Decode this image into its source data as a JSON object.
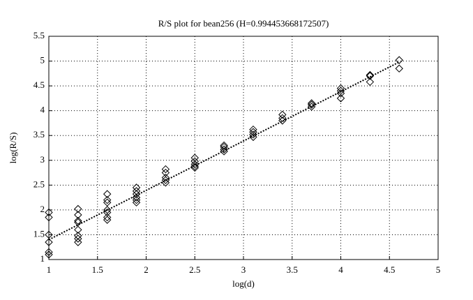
{
  "chart_data": {
    "type": "scatter",
    "title": "R/S plot for bean256 (H=0.994453668172507)",
    "x_label": "log(d)",
    "y_label": "log(R/S)",
    "xlim": [
      1,
      5
    ],
    "ylim": [
      1,
      5.5
    ],
    "xticks": [
      1,
      1.5,
      2,
      2.5,
      3,
      3.5,
      4,
      4.5,
      5
    ],
    "yticks": [
      1,
      1.5,
      2,
      2.5,
      3,
      3.5,
      4,
      4.5,
      5,
      5.5
    ],
    "grid": true,
    "series": [
      {
        "type": "scatter",
        "color": "#000000",
        "x": [
          1,
          1,
          1,
          1,
          1,
          1,
          1.3,
          1.3,
          1.3,
          1.3,
          1.3,
          1.3,
          1.3,
          1.3,
          1.6,
          1.6,
          1.6,
          1.6,
          1.6,
          1.6,
          1.6,
          1.9,
          1.9,
          1.9,
          1.9,
          1.9,
          1.9,
          2.2,
          2.2,
          2.2,
          2.2,
          2.2,
          2.5,
          2.5,
          2.5,
          2.5,
          2.5,
          2.8,
          2.8,
          2.8,
          2.8,
          3.1,
          3.1,
          3.1,
          3.1,
          3.4,
          3.4,
          3.4,
          3.7,
          3.7,
          3.7,
          4.0,
          4.0,
          4.0,
          4.0,
          4.3,
          4.3,
          4.3,
          4.6,
          4.6
        ],
        "values": [
          1.95,
          1.85,
          1.5,
          1.35,
          1.15,
          1.1,
          2.02,
          1.9,
          1.78,
          1.75,
          1.6,
          1.48,
          1.42,
          1.35,
          2.32,
          2.2,
          2.15,
          2.0,
          1.95,
          1.85,
          1.8,
          2.45,
          2.38,
          2.32,
          2.25,
          2.2,
          2.15,
          2.82,
          2.75,
          2.65,
          2.6,
          2.55,
          3.05,
          2.98,
          2.92,
          2.88,
          2.85,
          3.3,
          3.27,
          3.22,
          3.18,
          3.62,
          3.57,
          3.52,
          3.47,
          3.92,
          3.85,
          3.8,
          4.15,
          4.12,
          4.08,
          4.45,
          4.4,
          4.35,
          4.25,
          4.72,
          4.7,
          4.58,
          5.02,
          4.85
        ]
      },
      {
        "type": "line",
        "color": "#000000",
        "x": [
          1,
          4.6
        ],
        "values": [
          1.4,
          4.98
        ]
      }
    ]
  }
}
